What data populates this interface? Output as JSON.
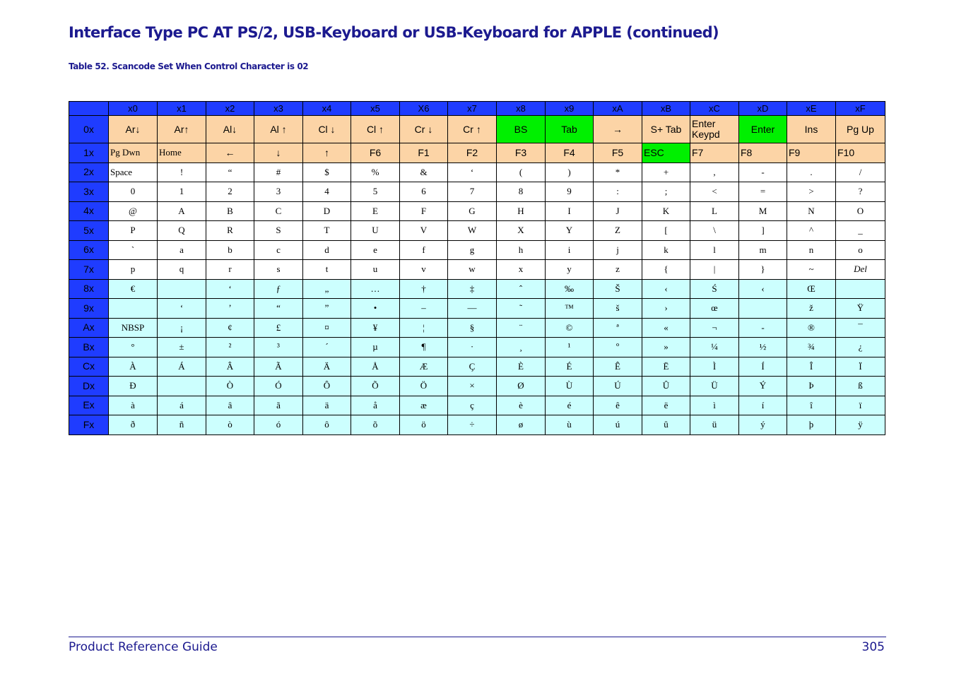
{
  "title": "Interface Type PC AT PS/2, USB-Keyboard or USB-Keyboard for APPLE (continued)",
  "table_caption": "Table 52. Scancode Set When Control Character is 02",
  "colors": {
    "header": "#1f3cff",
    "peach": "#fcd4a6",
    "green": "#00f000",
    "cyan": "#ccfffe",
    "white": "#ffffff",
    "title": "#1c1a8f"
  },
  "columns": [
    "x0",
    "x1",
    "x2",
    "x3",
    "x4",
    "x5",
    "X6",
    "x7",
    "x8",
    "x9",
    "xA",
    "xB",
    "xC",
    "xD",
    "xE",
    "xF"
  ],
  "rows": [
    {
      "label": "0x",
      "fill": "peach",
      "sans": true,
      "cells": [
        "Ar↓",
        "Ar↑",
        "Al↓",
        "Al ↑",
        "Cl ↓",
        "Cl ↑",
        "Cr ↓",
        "Cr ↑",
        "BS",
        "Tab",
        "→",
        "S+ Tab",
        "Enter Keypd",
        "Enter",
        "Ins",
        "Pg Up"
      ]
    },
    {
      "label": "1x",
      "fill": "peach",
      "sans": true,
      "cells": [
        "Pg Dwn",
        "Home",
        "←",
        "↓",
        "↑",
        "F6",
        "F1",
        "F2",
        "F3",
        "F4",
        "F5",
        "ESC",
        "F7",
        "F8",
        "F9",
        "F10"
      ]
    },
    {
      "label": "2x",
      "fill": "white",
      "cells": [
        "Space",
        "!",
        "“",
        "#",
        "$",
        "%",
        "&",
        "‘",
        "(",
        ")",
        "*",
        "+",
        ",",
        "-",
        ".",
        "/"
      ]
    },
    {
      "label": "3x",
      "fill": "white",
      "cells": [
        "0",
        "1",
        "2",
        "3",
        "4",
        "5",
        "6",
        "7",
        "8",
        "9",
        ":",
        ";",
        "<",
        "=",
        ">",
        "?"
      ]
    },
    {
      "label": "4x",
      "fill": "white",
      "cells": [
        "@",
        "A",
        "B",
        "C",
        "D",
        "E",
        "F",
        "G",
        "H",
        "I",
        "J",
        "K",
        "L",
        "M",
        "N",
        "O"
      ]
    },
    {
      "label": "5x",
      "fill": "white",
      "cells": [
        "P",
        "Q",
        "R",
        "S",
        "T",
        "U",
        "V",
        "W",
        "X",
        "Y",
        "Z",
        "[",
        "\\",
        "]",
        "^",
        "_"
      ]
    },
    {
      "label": "6x",
      "fill": "white",
      "cells": [
        "`",
        "a",
        "b",
        "c",
        "d",
        "e",
        "f",
        "g",
        "h",
        "i",
        "j",
        "k",
        "l",
        "m",
        "n",
        "o"
      ]
    },
    {
      "label": "7x",
      "fill": "white",
      "cells": [
        "p",
        "q",
        "r",
        "s",
        "t",
        "u",
        "v",
        "w",
        "x",
        "y",
        "z",
        "{",
        "|",
        "}",
        "~",
        "Del"
      ]
    },
    {
      "label": "8x",
      "fill": "cyan",
      "cells": [
        "€",
        "",
        "‘",
        "ƒ",
        "„",
        "…",
        "†",
        "‡",
        "ˆ",
        "‰",
        "Š",
        "‹",
        "Ś",
        "‹",
        "Œ",
        ""
      ]
    },
    {
      "label": "9x",
      "fill": "cyan",
      "cells": [
        "",
        "‘",
        "’",
        "“",
        "”",
        "•",
        "–",
        "—",
        "˜",
        "™",
        "š",
        "›",
        "œ",
        "",
        "ž",
        "Ÿ"
      ]
    },
    {
      "label": "Ax",
      "fill": "cyan",
      "cells": [
        "NBSP",
        "¡",
        "¢",
        "£",
        "¤",
        "¥",
        "¦",
        "§",
        "¨",
        "©",
        "ª",
        "«",
        "¬",
        "-",
        "®",
        "¯"
      ]
    },
    {
      "label": "Bx",
      "fill": "cyan",
      "cells": [
        "°",
        "±",
        "²",
        "³",
        "´",
        "µ",
        "¶",
        "·",
        "¸",
        "¹",
        "º",
        "»",
        "¼",
        "½",
        "¾",
        "¿"
      ]
    },
    {
      "label": "Cx",
      "fill": "cyan",
      "cells": [
        "À",
        "Á",
        "Â",
        "Ã",
        "Ä",
        "Å",
        "Æ",
        "Ç",
        "È",
        "É",
        "Ê",
        "Ë",
        "Ì",
        "Í",
        "Î",
        "Ï"
      ]
    },
    {
      "label": "Dx",
      "fill": "cyan",
      "cells": [
        "Ð",
        "",
        "Ò",
        "Ó",
        "Ô",
        "Õ",
        "Ö",
        "×",
        "Ø",
        "Ù",
        "Ú",
        "Û",
        "Ü",
        "Ý",
        "Þ",
        "ß"
      ]
    },
    {
      "label": "Ex",
      "fill": "cyan",
      "cells": [
        "à",
        "á",
        "â",
        "ã",
        "ä",
        "å",
        "æ",
        "ç",
        "è",
        "é",
        "ê",
        "ë",
        "ì",
        "í",
        "î",
        "ï"
      ]
    },
    {
      "label": "Fx",
      "fill": "cyan",
      "cells": [
        "ð",
        "ñ",
        "ò",
        "ó",
        "ô",
        "õ",
        "ö",
        "÷",
        "ø",
        "ù",
        "ú",
        "û",
        "ü",
        "ý",
        "þ",
        "ÿ"
      ]
    }
  ],
  "green_cells": [
    [
      0,
      8
    ],
    [
      0,
      9
    ],
    [
      0,
      13
    ],
    [
      1,
      11
    ]
  ],
  "footer": {
    "left": "Product Reference Guide",
    "right": "305"
  }
}
